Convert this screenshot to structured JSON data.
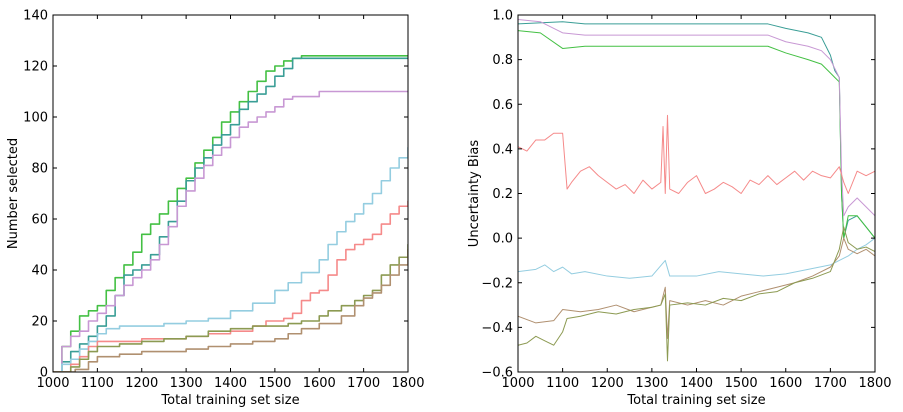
{
  "chart_data": [
    {
      "type": "line",
      "step": true,
      "xlabel": "Total training set size",
      "ylabel": "Number selected",
      "xlim": [
        1000,
        1800
      ],
      "ylim": [
        0,
        140
      ],
      "xticks": [
        1000,
        1100,
        1200,
        1300,
        1400,
        1500,
        1600,
        1700,
        1800
      ],
      "yticks": [
        0,
        20,
        40,
        60,
        80,
        100,
        120,
        140
      ],
      "xtick_labels": [
        "1000",
        "1100",
        "1200",
        "1300",
        "1400",
        "1500",
        "1600",
        "1700",
        "1800"
      ],
      "ytick_labels": [
        "0",
        "20",
        "40",
        "60",
        "80",
        "100",
        "120",
        "140"
      ],
      "series": [
        {
          "name": "green",
          "color": "#44c044",
          "x": [
            1000,
            1020,
            1040,
            1060,
            1080,
            1100,
            1120,
            1140,
            1160,
            1180,
            1200,
            1220,
            1240,
            1260,
            1280,
            1300,
            1320,
            1340,
            1360,
            1380,
            1400,
            1420,
            1440,
            1460,
            1480,
            1500,
            1520,
            1540,
            1560,
            1580,
            1600,
            1650,
            1700,
            1750,
            1800
          ],
          "y": [
            0,
            10,
            16,
            22,
            24,
            26,
            32,
            37,
            42,
            47,
            54,
            58,
            62,
            67,
            72,
            76,
            82,
            87,
            92,
            98,
            102,
            106,
            110,
            114,
            118,
            120,
            122,
            123,
            124,
            124,
            124,
            124,
            124,
            124,
            124
          ]
        },
        {
          "name": "teal",
          "color": "#3a9e96",
          "x": [
            1000,
            1020,
            1040,
            1060,
            1080,
            1100,
            1120,
            1140,
            1160,
            1180,
            1200,
            1220,
            1240,
            1260,
            1280,
            1300,
            1320,
            1340,
            1360,
            1380,
            1400,
            1420,
            1440,
            1460,
            1480,
            1500,
            1520,
            1540,
            1560,
            1600,
            1650,
            1700,
            1750,
            1800
          ],
          "y": [
            0,
            4,
            8,
            11,
            14,
            18,
            22,
            30,
            38,
            40,
            42,
            46,
            53,
            59,
            67,
            75,
            80,
            84,
            89,
            93,
            97,
            103,
            106,
            109,
            112,
            116,
            119,
            123,
            123,
            123,
            123,
            123,
            123,
            123
          ]
        },
        {
          "name": "purple",
          "color": "#c898d4",
          "x": [
            1000,
            1020,
            1040,
            1060,
            1080,
            1100,
            1120,
            1140,
            1160,
            1180,
            1200,
            1220,
            1240,
            1260,
            1280,
            1300,
            1320,
            1340,
            1360,
            1380,
            1400,
            1420,
            1440,
            1460,
            1480,
            1500,
            1520,
            1540,
            1560,
            1580,
            1600,
            1650,
            1700,
            1750,
            1800
          ],
          "y": [
            0,
            10,
            14,
            16,
            20,
            23,
            26,
            30,
            34,
            37,
            40,
            44,
            50,
            57,
            65,
            71,
            76,
            81,
            85,
            88,
            92,
            96,
            98,
            100,
            102,
            104,
            107,
            108,
            108,
            108,
            110,
            110,
            110,
            110,
            110
          ]
        },
        {
          "name": "light-blue",
          "color": "#94cde0",
          "x": [
            1000,
            1020,
            1040,
            1060,
            1080,
            1100,
            1120,
            1150,
            1200,
            1250,
            1300,
            1350,
            1400,
            1450,
            1500,
            1530,
            1560,
            1600,
            1620,
            1640,
            1660,
            1680,
            1700,
            1720,
            1740,
            1760,
            1780,
            1800
          ],
          "y": [
            0,
            3,
            5,
            9,
            12,
            15,
            17,
            18,
            18,
            19,
            20,
            21,
            24,
            27,
            32,
            35,
            39,
            44,
            50,
            55,
            59,
            62,
            66,
            70,
            75,
            80,
            84,
            88
          ]
        },
        {
          "name": "salmon",
          "color": "#f58a8a",
          "x": [
            1000,
            1040,
            1060,
            1080,
            1100,
            1150,
            1200,
            1250,
            1300,
            1350,
            1400,
            1450,
            1480,
            1500,
            1520,
            1540,
            1560,
            1580,
            1600,
            1620,
            1640,
            1660,
            1680,
            1700,
            1720,
            1740,
            1760,
            1780,
            1800
          ],
          "y": [
            0,
            3,
            6,
            10,
            12,
            12,
            13,
            13,
            14,
            15,
            16,
            18,
            20,
            20,
            21,
            23,
            28,
            31,
            32,
            38,
            44,
            48,
            50,
            52,
            54,
            58,
            62,
            65,
            67
          ]
        },
        {
          "name": "olive",
          "color": "#8c9a52",
          "x": [
            1000,
            1020,
            1040,
            1060,
            1080,
            1100,
            1150,
            1200,
            1250,
            1300,
            1350,
            1400,
            1450,
            1500,
            1530,
            1560,
            1600,
            1620,
            1650,
            1680,
            1700,
            1720,
            1740,
            1760,
            1780,
            1800
          ],
          "y": [
            0,
            0,
            2,
            5,
            8,
            10,
            11,
            12,
            13,
            14,
            16,
            17,
            18,
            18,
            19,
            20,
            22,
            24,
            26,
            28,
            30,
            32,
            38,
            42,
            45,
            50
          ]
        },
        {
          "name": "tan",
          "color": "#b09070",
          "x": [
            1000,
            1050,
            1080,
            1100,
            1150,
            1200,
            1250,
            1300,
            1350,
            1400,
            1450,
            1500,
            1530,
            1560,
            1600,
            1650,
            1680,
            1700,
            1720,
            1740,
            1760,
            1780,
            1800
          ],
          "y": [
            0,
            1,
            4,
            6,
            7,
            8,
            8,
            9,
            10,
            11,
            12,
            13,
            15,
            17,
            19,
            22,
            26,
            29,
            31,
            34,
            38,
            42,
            48
          ]
        }
      ]
    },
    {
      "type": "line",
      "xlabel": "Total training set size",
      "ylabel": "Uncertainty Bias",
      "xlim": [
        1000,
        1800
      ],
      "ylim": [
        -0.6,
        1.0
      ],
      "xticks": [
        1000,
        1100,
        1200,
        1300,
        1400,
        1500,
        1600,
        1700,
        1800
      ],
      "yticks": [
        -0.6,
        -0.4,
        -0.2,
        0.0,
        0.2,
        0.4,
        0.6,
        0.8,
        1.0
      ],
      "xtick_labels": [
        "1000",
        "1100",
        "1200",
        "1300",
        "1400",
        "1500",
        "1600",
        "1700",
        "1800"
      ],
      "ytick_labels": [
        "−0.6",
        "−0.4",
        "−0.2",
        "0.0",
        "0.2",
        "0.4",
        "0.6",
        "0.8",
        "1.0"
      ],
      "series": [
        {
          "name": "teal",
          "color": "#3a9e96",
          "x": [
            1000,
            1100,
            1150,
            1200,
            1250,
            1300,
            1330,
            1340,
            1400,
            1500,
            1560,
            1600,
            1650,
            1680,
            1700,
            1710,
            1720,
            1725,
            1730,
            1740,
            1760,
            1780,
            1800
          ],
          "y": [
            0.96,
            0.97,
            0.96,
            0.96,
            0.96,
            0.96,
            0.96,
            0.96,
            0.96,
            0.96,
            0.96,
            0.94,
            0.92,
            0.9,
            0.82,
            0.75,
            0.72,
            0.2,
            0.0,
            0.08,
            0.1,
            0.05,
            0.0
          ]
        },
        {
          "name": "green",
          "color": "#44c044",
          "x": [
            1000,
            1050,
            1100,
            1150,
            1200,
            1250,
            1300,
            1330,
            1340,
            1400,
            1500,
            1560,
            1600,
            1650,
            1680,
            1700,
            1710,
            1720,
            1725,
            1730,
            1740,
            1760,
            1780,
            1800
          ],
          "y": [
            0.93,
            0.92,
            0.85,
            0.86,
            0.86,
            0.86,
            0.86,
            0.86,
            0.86,
            0.86,
            0.86,
            0.86,
            0.83,
            0.8,
            0.78,
            0.74,
            0.72,
            0.7,
            0.2,
            0.0,
            0.1,
            0.1,
            0.05,
            0.0
          ]
        },
        {
          "name": "purple",
          "color": "#c898d4",
          "x": [
            1000,
            1050,
            1100,
            1150,
            1200,
            1250,
            1300,
            1330,
            1340,
            1400,
            1500,
            1560,
            1600,
            1650,
            1680,
            1700,
            1710,
            1720,
            1725,
            1730,
            1740,
            1760,
            1780,
            1800
          ],
          "y": [
            0.98,
            0.97,
            0.92,
            0.91,
            0.91,
            0.91,
            0.91,
            0.91,
            0.91,
            0.91,
            0.91,
            0.91,
            0.88,
            0.86,
            0.84,
            0.8,
            0.76,
            0.72,
            0.3,
            0.1,
            0.14,
            0.18,
            0.14,
            0.1
          ]
        },
        {
          "name": "salmon",
          "color": "#f58a8a",
          "x": [
            1000,
            1020,
            1040,
            1060,
            1080,
            1100,
            1110,
            1120,
            1140,
            1160,
            1180,
            1200,
            1220,
            1240,
            1260,
            1280,
            1300,
            1320,
            1325,
            1330,
            1335,
            1340,
            1360,
            1380,
            1400,
            1420,
            1440,
            1460,
            1480,
            1500,
            1520,
            1540,
            1560,
            1580,
            1600,
            1620,
            1640,
            1660,
            1680,
            1700,
            1720,
            1730,
            1740,
            1760,
            1780,
            1800
          ],
          "y": [
            0.41,
            0.39,
            0.44,
            0.44,
            0.47,
            0.47,
            0.22,
            0.25,
            0.3,
            0.32,
            0.28,
            0.25,
            0.22,
            0.24,
            0.2,
            0.26,
            0.22,
            0.25,
            0.5,
            0.2,
            0.55,
            0.22,
            0.2,
            0.25,
            0.28,
            0.2,
            0.22,
            0.25,
            0.23,
            0.2,
            0.26,
            0.24,
            0.28,
            0.24,
            0.27,
            0.3,
            0.26,
            0.3,
            0.28,
            0.27,
            0.32,
            0.25,
            0.2,
            0.3,
            0.28,
            0.3
          ]
        },
        {
          "name": "light-blue",
          "color": "#94cde0",
          "x": [
            1000,
            1040,
            1060,
            1080,
            1100,
            1120,
            1150,
            1200,
            1250,
            1300,
            1330,
            1340,
            1400,
            1450,
            1500,
            1550,
            1600,
            1650,
            1700,
            1720,
            1740,
            1760,
            1780,
            1800
          ],
          "y": [
            -0.15,
            -0.14,
            -0.12,
            -0.15,
            -0.13,
            -0.16,
            -0.15,
            -0.17,
            -0.18,
            -0.17,
            -0.1,
            -0.17,
            -0.17,
            -0.15,
            -0.16,
            -0.17,
            -0.16,
            -0.14,
            -0.12,
            -0.1,
            -0.08,
            -0.05,
            -0.03,
            0.0
          ]
        },
        {
          "name": "tan",
          "color": "#b09070",
          "x": [
            1000,
            1040,
            1080,
            1100,
            1140,
            1180,
            1220,
            1260,
            1300,
            1320,
            1330,
            1335,
            1340,
            1380,
            1420,
            1460,
            1500,
            1540,
            1580,
            1620,
            1660,
            1700,
            1720,
            1730,
            1740,
            1760,
            1780,
            1800
          ],
          "y": [
            -0.35,
            -0.38,
            -0.37,
            -0.32,
            -0.33,
            -0.32,
            -0.3,
            -0.33,
            -0.31,
            -0.3,
            -0.22,
            -0.45,
            -0.28,
            -0.3,
            -0.28,
            -0.3,
            -0.26,
            -0.24,
            -0.22,
            -0.2,
            -0.17,
            -0.13,
            -0.08,
            0.0,
            -0.05,
            -0.07,
            -0.05,
            -0.08
          ]
        },
        {
          "name": "olive",
          "color": "#8c9a52",
          "x": [
            1000,
            1020,
            1040,
            1060,
            1080,
            1100,
            1110,
            1140,
            1180,
            1220,
            1260,
            1300,
            1320,
            1330,
            1335,
            1340,
            1380,
            1420,
            1460,
            1500,
            1540,
            1580,
            1620,
            1660,
            1700,
            1720,
            1730,
            1740,
            1760,
            1780,
            1800
          ],
          "y": [
            -0.48,
            -0.47,
            -0.44,
            -0.46,
            -0.48,
            -0.42,
            -0.36,
            -0.35,
            -0.33,
            -0.34,
            -0.32,
            -0.31,
            -0.3,
            -0.25,
            -0.55,
            -0.3,
            -0.29,
            -0.3,
            -0.27,
            -0.28,
            -0.25,
            -0.24,
            -0.2,
            -0.18,
            -0.15,
            -0.05,
            0.05,
            -0.02,
            -0.05,
            -0.04,
            -0.06
          ]
        }
      ]
    }
  ]
}
